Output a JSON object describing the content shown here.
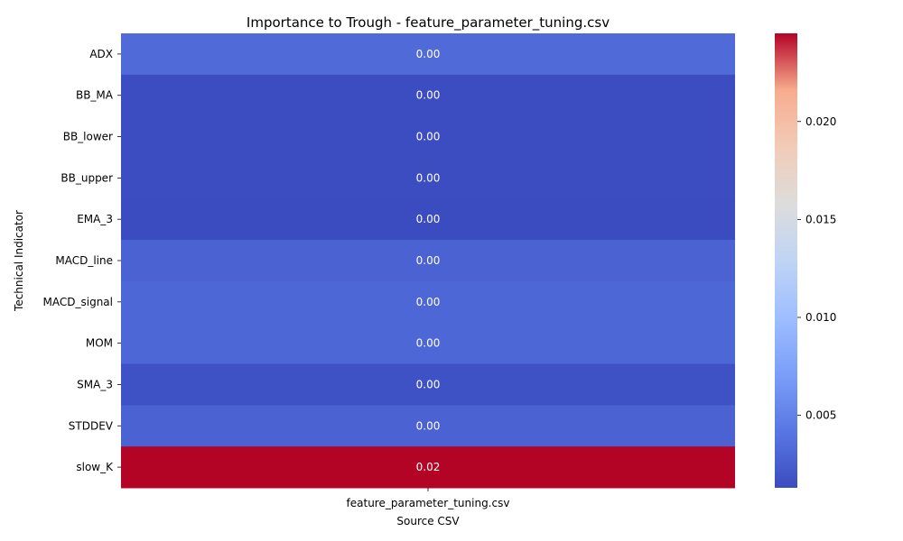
{
  "chart_data": {
    "type": "heatmap",
    "title": "Importance to Trough - feature_parameter_tuning.csv",
    "xlabel": "Source CSV",
    "ylabel": "Technical Indicator",
    "columns": [
      "feature_parameter_tuning.csv"
    ],
    "rows": [
      "ADX",
      "BB_MA",
      "BB_lower",
      "BB_upper",
      "EMA_3",
      "MACD_line",
      "MACD_signal",
      "MOM",
      "SMA_3",
      "STDDEV",
      "slow_K"
    ],
    "values": [
      0.0033,
      0.0014,
      0.0014,
      0.0014,
      0.0013,
      0.0028,
      0.0031,
      0.0031,
      0.0017,
      0.0028,
      0.0245
    ],
    "cell_labels": [
      "0.00",
      "0.00",
      "0.00",
      "0.00",
      "0.00",
      "0.00",
      "0.00",
      "0.00",
      "0.00",
      "0.00",
      "0.02"
    ],
    "colormap": "coolwarm",
    "colorbar": {
      "min": 0.0013,
      "max": 0.0245,
      "ticks": [
        0.005,
        0.01,
        0.015,
        0.02
      ],
      "tick_labels": [
        "0.005",
        "0.010",
        "0.015",
        "0.020"
      ]
    }
  }
}
